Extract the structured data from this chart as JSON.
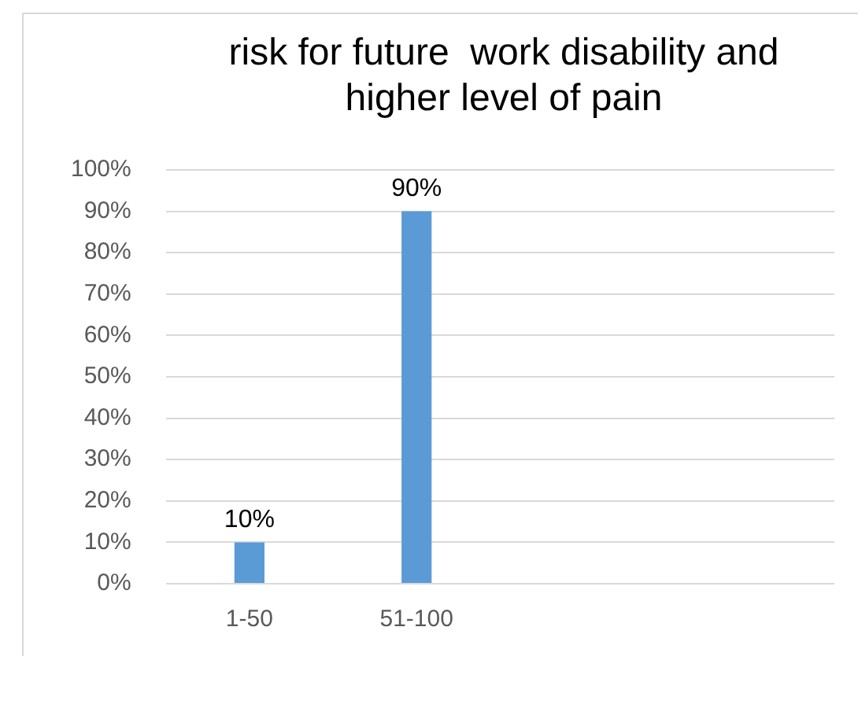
{
  "chart_data": {
    "type": "bar",
    "title": "risk for future  work disability and higher level of pain",
    "categories": [
      "1-50",
      "51-100",
      null,
      null
    ],
    "values": [
      10,
      90,
      null,
      null
    ],
    "value_labels": [
      "10%",
      "90%",
      null,
      null
    ],
    "color": "#5b9bd5",
    "ylim": [
      0,
      100
    ],
    "yticks": [
      {
        "value": 0,
        "label": "0%"
      },
      {
        "value": 10,
        "label": "10%"
      },
      {
        "value": 20,
        "label": "20%"
      },
      {
        "value": 30,
        "label": "30%"
      },
      {
        "value": 40,
        "label": "40%"
      },
      {
        "value": 50,
        "label": "50%"
      },
      {
        "value": 60,
        "label": "60%"
      },
      {
        "value": 70,
        "label": "70%"
      },
      {
        "value": 80,
        "label": "80%"
      },
      {
        "value": 90,
        "label": "90%"
      },
      {
        "value": 100,
        "label": "100%"
      }
    ],
    "grid": "y",
    "legend": false
  }
}
